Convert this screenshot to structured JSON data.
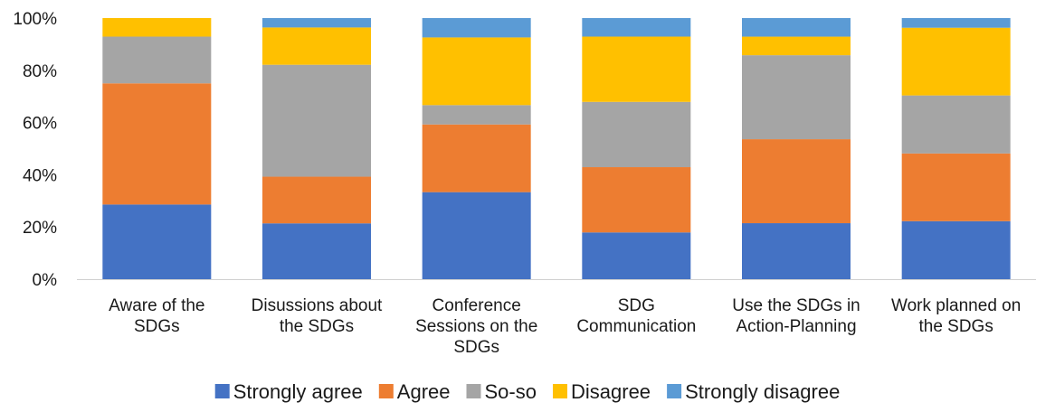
{
  "chart_data": {
    "type": "bar",
    "stacked": true,
    "categories": [
      [
        "Aware of the",
        "SDGs"
      ],
      [
        "Disussions about",
        "the SDGs"
      ],
      [
        "Conference",
        "Sessions on the",
        "SDGs"
      ],
      [
        "SDG",
        "Communication"
      ],
      [
        "Use the SDGs in",
        "Action-Planning"
      ],
      [
        "Work planned on",
        "the SDGs"
      ]
    ],
    "series": [
      {
        "name": "Strongly agree",
        "color": "#4472C4",
        "values": [
          28.6,
          21.4,
          33.3,
          17.9,
          21.4,
          22.2
        ]
      },
      {
        "name": "Agree",
        "color": "#ED7D31",
        "values": [
          46.4,
          17.9,
          25.9,
          25.0,
          32.1,
          25.9
        ]
      },
      {
        "name": "So-so",
        "color": "#A5A5A5",
        "values": [
          17.9,
          42.9,
          7.4,
          25.0,
          32.1,
          22.2
        ]
      },
      {
        "name": "Disagree",
        "color": "#FFC000",
        "values": [
          7.1,
          14.3,
          25.9,
          25.0,
          7.1,
          25.9
        ]
      },
      {
        "name": "Strongly disagree",
        "color": "#5B9BD5",
        "values": [
          0,
          3.6,
          7.4,
          7.1,
          7.1,
          3.7
        ]
      }
    ],
    "ylim": [
      0,
      100
    ],
    "yticks": [
      "0%",
      "20%",
      "40%",
      "60%",
      "80%",
      "100%"
    ],
    "grid": false,
    "legend_position": "bottom"
  }
}
